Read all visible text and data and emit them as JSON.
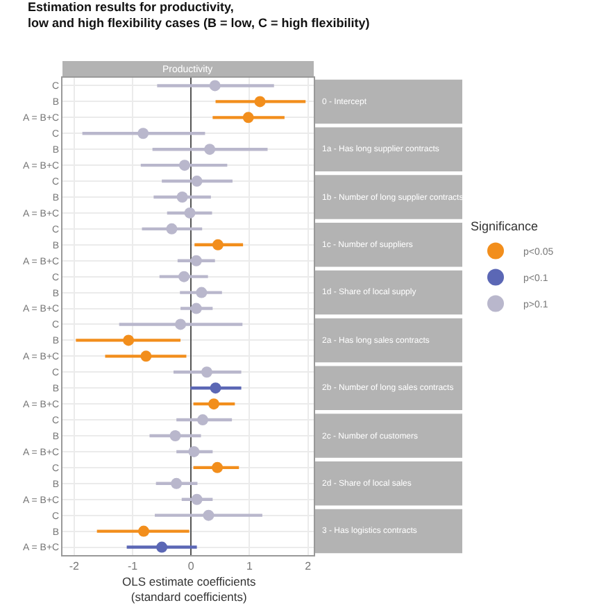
{
  "chart_data": {
    "type": "scatter",
    "title": "Estimation results for productivity,\nlow and high flexibility cases (B = low, C = high flexibility)",
    "subtitle": "Productivity",
    "xlabel": "OLS estimate coefficients\n(standard coefficients)",
    "orientation": "horizontal",
    "marker": "circle",
    "grid": true,
    "legend": "right",
    "legend_title": "Significance",
    "categories": [
      "C",
      "B",
      "A = B+C",
      "C",
      "B",
      "A = B+C",
      "C",
      "B",
      "A = B+C",
      "C",
      "B",
      "A = B+C",
      "C",
      "B",
      "A = B+C",
      "C",
      "B",
      "A = B+C",
      "C",
      "B",
      "A = B+C",
      "C",
      "B",
      "A = B+C",
      "C",
      "B",
      "A = B+C",
      "C",
      "B",
      "A = B+C"
    ],
    "xlim": [
      -2.2,
      2.1
    ],
    "xticks": [
      -2,
      -1,
      0,
      1,
      2
    ],
    "ref_lines": [
      {
        "axis": "x",
        "value": 0,
        "color": "#555555"
      }
    ],
    "annotations": [
      "0 - Intercept",
      "1a - Has long supplier contracts",
      "1b - Number of long supplier contracts",
      "1c - Number of suppliers",
      "1d - Share of local supply",
      "2a - Has long sales contracts",
      "2b - Number of long sales contracts",
      "2c - Number of customers",
      "2d - Share of local sales",
      "3 - Has logistics contracts"
    ],
    "series": [
      {
        "name": "p<0.05",
        "color": "#f28e1c",
        "values": [
          null,
          1.18,
          0.98,
          null,
          null,
          null,
          null,
          null,
          null,
          null,
          0.46,
          null,
          null,
          null,
          null,
          null,
          -1.07,
          -0.77,
          null,
          null,
          0.39,
          null,
          null,
          null,
          0.45,
          null,
          null,
          null,
          -0.81,
          null
        ],
        "errors": [
          null,
          [
            0.42,
            1.96
          ],
          [
            0.37,
            1.6
          ],
          null,
          null,
          null,
          null,
          null,
          null,
          null,
          [
            0.06,
            0.89
          ],
          null,
          null,
          null,
          null,
          null,
          [
            -1.97,
            -0.18
          ],
          [
            -1.47,
            -0.08
          ],
          null,
          null,
          [
            0.04,
            0.75
          ],
          null,
          null,
          null,
          [
            0.04,
            0.82
          ],
          null,
          null,
          null,
          [
            -1.61,
            -0.03
          ],
          null
        ]
      },
      {
        "name": "p<0.1",
        "color": "#5b67b5",
        "values": [
          null,
          null,
          null,
          null,
          null,
          null,
          null,
          null,
          null,
          null,
          null,
          null,
          null,
          null,
          null,
          null,
          null,
          null,
          null,
          0.42,
          null,
          null,
          null,
          null,
          null,
          null,
          null,
          null,
          null,
          -0.5
        ],
        "errors": [
          null,
          null,
          null,
          null,
          null,
          null,
          null,
          null,
          null,
          null,
          null,
          null,
          null,
          null,
          null,
          null,
          null,
          null,
          null,
          [
            -0.01,
            0.86
          ],
          null,
          null,
          null,
          null,
          null,
          null,
          null,
          null,
          null,
          [
            -1.1,
            0.1
          ]
        ]
      },
      {
        "name": "p>0.1",
        "color": "#b9b7cc",
        "values": [
          0.41,
          null,
          null,
          -0.82,
          0.32,
          -0.11,
          0.1,
          -0.15,
          -0.02,
          -0.33,
          null,
          0.09,
          -0.12,
          0.18,
          0.09,
          -0.18,
          null,
          null,
          0.27,
          null,
          null,
          0.2,
          -0.27,
          0.05,
          null,
          -0.25,
          0.1,
          0.3,
          null,
          null
        ],
        "errors": [
          [
            -0.58,
            1.42
          ],
          null,
          null,
          [
            -1.86,
            0.24
          ],
          [
            -0.66,
            1.31
          ],
          [
            -0.86,
            0.62
          ],
          [
            -0.5,
            0.71
          ],
          [
            -0.64,
            0.34
          ],
          [
            -0.41,
            0.36
          ],
          [
            -0.84,
            0.19
          ],
          null,
          [
            -0.23,
            0.41
          ],
          [
            -0.54,
            0.29
          ],
          [
            -0.19,
            0.53
          ],
          [
            -0.18,
            0.37
          ],
          [
            -1.23,
            0.88
          ],
          null,
          null,
          [
            -0.3,
            0.86
          ],
          null,
          null,
          [
            -0.25,
            0.7
          ],
          [
            -0.71,
            0.17
          ],
          [
            -0.25,
            0.37
          ],
          null,
          [
            -0.6,
            0.11
          ],
          [
            -0.16,
            0.37
          ],
          [
            -0.62,
            1.22
          ],
          null,
          null
        ]
      }
    ]
  }
}
